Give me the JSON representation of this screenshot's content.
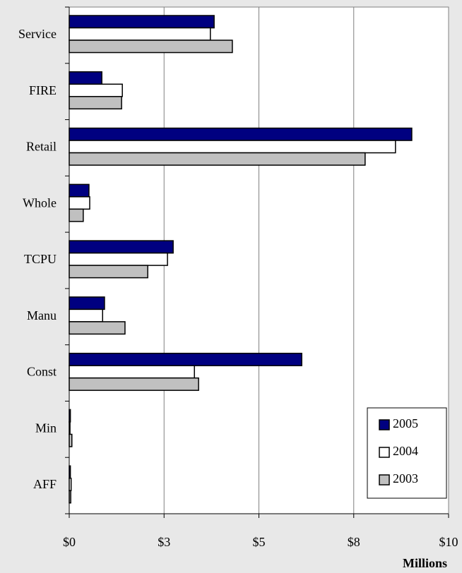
{
  "chart_data": {
    "type": "hbar",
    "x_label": "Millions",
    "categories": [
      "Service",
      "FIRE",
      "Retail",
      "Whole",
      "TCPU",
      "Manu",
      "Const",
      "Min",
      "AFF"
    ],
    "series": [
      {
        "name": "2005",
        "color": "#000080",
        "values": [
          3.82,
          0.86,
          9.03,
          0.52,
          2.74,
          0.93,
          6.13,
          0.03,
          0.03
        ]
      },
      {
        "name": "2004",
        "color": "#ffffff",
        "values": [
          3.72,
          1.4,
          8.6,
          0.54,
          2.59,
          0.88,
          3.3,
          0.02,
          0.05
        ]
      },
      {
        "name": "2003",
        "color": "#c0c0c0",
        "values": [
          4.3,
          1.38,
          7.8,
          0.37,
          2.07,
          1.47,
          3.41,
          0.07,
          0.04
        ]
      }
    ],
    "xlim": [
      0,
      10
    ],
    "xticks": [
      {
        "value": 0,
        "label": "$0"
      },
      {
        "value": 2.5,
        "label": "$3"
      },
      {
        "value": 5,
        "label": "$5"
      },
      {
        "value": 7.5,
        "label": "$8"
      },
      {
        "value": 10,
        "label": "$10"
      }
    ],
    "grid": true,
    "legend": "bottom-right"
  }
}
